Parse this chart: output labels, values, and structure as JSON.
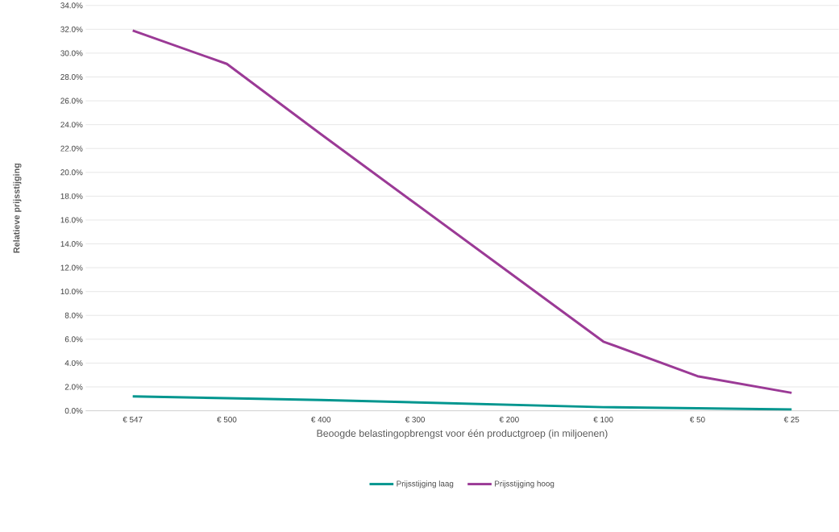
{
  "chart_data": {
    "type": "line",
    "xlabel": "Beoogde belastingopbrengst voor één productgroep (in miljoenen)",
    "ylabel": "Relatieve prijsstijging",
    "categories": [
      "€ 547",
      "€ 500",
      "€ 400",
      "€ 300",
      "€ 200",
      "€ 100",
      "€ 50",
      "€ 25"
    ],
    "series": [
      {
        "name": "Prijsstijging laag",
        "color": "#00968f",
        "values": [
          1.2,
          1.05,
          0.9,
          0.7,
          0.5,
          0.3,
          0.2,
          0.1
        ]
      },
      {
        "name": "Prijsstijging hoog",
        "color": "#9b3a96",
        "values": [
          31.9,
          29.1,
          23.2,
          17.4,
          11.6,
          5.8,
          2.9,
          1.5
        ]
      }
    ],
    "ylim": [
      0,
      34
    ],
    "yticks": [
      {
        "value": 0,
        "label": "0.0%"
      },
      {
        "value": 2,
        "label": "2.0%"
      },
      {
        "value": 4,
        "label": "4.0%"
      },
      {
        "value": 6,
        "label": "6.0%"
      },
      {
        "value": 8,
        "label": "8.0%"
      },
      {
        "value": 10,
        "label": "10.0%"
      },
      {
        "value": 12,
        "label": "12.0%"
      },
      {
        "value": 14,
        "label": "14.0%"
      },
      {
        "value": 16,
        "label": "16.0%"
      },
      {
        "value": 18,
        "label": "18.0%"
      },
      {
        "value": 20,
        "label": "20.0%"
      },
      {
        "value": 22,
        "label": "22.0%"
      },
      {
        "value": 24,
        "label": "24.0%"
      },
      {
        "value": 26,
        "label": "26.0%"
      },
      {
        "value": 28,
        "label": "28.0%"
      },
      {
        "value": 30,
        "label": "30.0%"
      },
      {
        "value": 32,
        "label": "32.0%"
      },
      {
        "value": 34,
        "label": "34.0%"
      }
    ],
    "grid": "y",
    "legend": "bottom",
    "marker": "none",
    "line_style": "solid"
  }
}
